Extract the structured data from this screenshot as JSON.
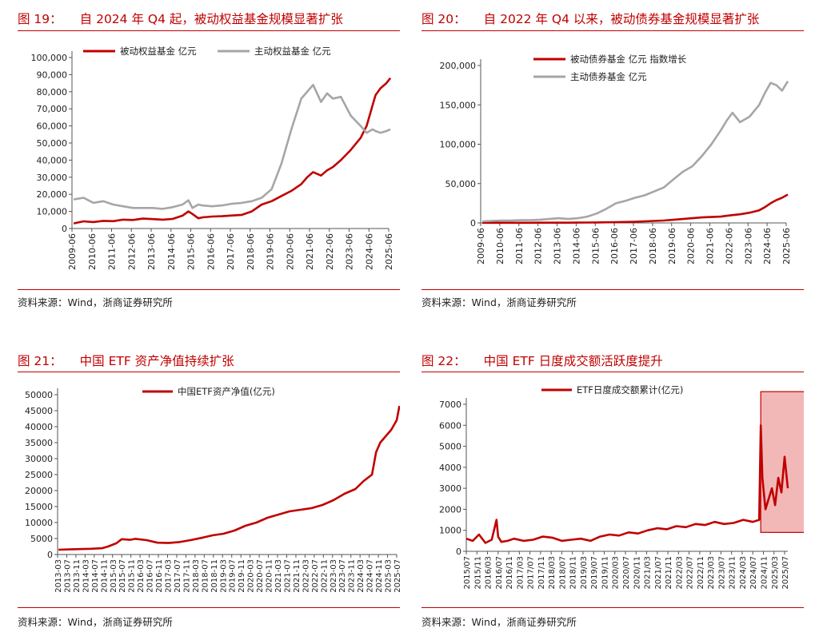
{
  "colors": {
    "red": "#c00000",
    "gray": "#a6a6a6",
    "highlight_fill": "#f2b8b8"
  },
  "panels": [
    {
      "title_num": "图 19：",
      "title": "自 2024 年 Q4 起，被动权益基金规模显著扩张",
      "source": "资料来源：Wind，浙商证券研究所"
    },
    {
      "title_num": "图 20：",
      "title": "自 2022 年 Q4 以来，被动债券基金规模显著扩张",
      "source": "资料来源：Wind，浙商证券研究所"
    },
    {
      "title_num": "图 21：",
      "title": "中国 ETF 资产净值持续扩张",
      "source": "资料来源：Wind，浙商证券研究所"
    },
    {
      "title_num": "图 22：",
      "title": "中国 ETF 日度成交额活跃度提升",
      "source": "资料来源：Wind，浙商证券研究所"
    }
  ],
  "chart_data": [
    {
      "type": "line",
      "ylim": [
        0,
        100000
      ],
      "yticks": [
        "0",
        "10,000",
        "20,000",
        "30,000",
        "40,000",
        "50,000",
        "60,000",
        "70,000",
        "80,000",
        "90,000",
        "100,000"
      ],
      "xticks": [
        "2009-06",
        "2010-06",
        "2011-06",
        "2012-06",
        "2013-06",
        "2014-06",
        "2015-06",
        "2016-06",
        "2017-06",
        "2018-06",
        "2019-06",
        "2020-06",
        "2021-06",
        "2022-06",
        "2023-06",
        "2024-06",
        "2025-06"
      ],
      "x": [
        2009.5,
        2010.0,
        2010.5,
        2011.0,
        2011.5,
        2012.0,
        2012.5,
        2013.0,
        2013.5,
        2014.0,
        2014.5,
        2015.0,
        2015.3,
        2015.5,
        2015.8,
        2016.0,
        2016.5,
        2017.0,
        2017.5,
        2018.0,
        2018.5,
        2019.0,
        2019.5,
        2020.0,
        2020.5,
        2021.0,
        2021.3,
        2021.6,
        2022.0,
        2022.3,
        2022.6,
        2023.0,
        2023.5,
        2024.0,
        2024.3,
        2024.6,
        2024.75,
        2025.0,
        2025.3,
        2025.5
      ],
      "legend_position": "top",
      "series": [
        {
          "name": "被动权益基金 亿元",
          "color": "#c00000",
          "values": [
            3000,
            4200,
            3800,
            4500,
            4300,
            5200,
            5000,
            5800,
            5500,
            5200,
            5600,
            7500,
            10000,
            8500,
            6000,
            6500,
            7000,
            7200,
            7600,
            8000,
            10000,
            14000,
            16000,
            19000,
            22000,
            26000,
            30000,
            33000,
            31000,
            34000,
            36000,
            40000,
            46000,
            53000,
            60000,
            72000,
            78000,
            82000,
            85000,
            88000
          ]
        },
        {
          "name": "主动权益基金 亿元",
          "color": "#a6a6a6",
          "values": [
            17000,
            18000,
            15000,
            16000,
            14000,
            13000,
            12000,
            12000,
            12000,
            11500,
            12500,
            14000,
            16500,
            12000,
            14000,
            13500,
            13000,
            13500,
            14500,
            15000,
            16000,
            18000,
            23000,
            38000,
            58000,
            76000,
            80000,
            84000,
            74000,
            79000,
            76000,
            77000,
            66000,
            60000,
            56000,
            58000,
            57000,
            56000,
            57000,
            58000
          ]
        }
      ]
    },
    {
      "type": "line",
      "ylim": [
        0,
        200000
      ],
      "yticks": [
        "0",
        "50,000",
        "100,000",
        "150,000",
        "200,000"
      ],
      "xticks": [
        "2009-06",
        "2010-06",
        "2011-06",
        "2012-06",
        "2013-06",
        "2014-06",
        "2015-06",
        "2016-06",
        "2017-06",
        "2018-06",
        "2019-06",
        "2020-06",
        "2021-06",
        "2022-06",
        "2023-06",
        "2024-06",
        "2025-06"
      ],
      "x": [
        2009.5,
        2010.0,
        2010.5,
        2011.0,
        2011.5,
        2012.0,
        2012.5,
        2013.0,
        2013.5,
        2014.0,
        2014.5,
        2015.0,
        2015.5,
        2016.0,
        2016.5,
        2017.0,
        2017.5,
        2018.0,
        2018.5,
        2019.0,
        2019.5,
        2020.0,
        2020.5,
        2021.0,
        2021.5,
        2022.0,
        2022.3,
        2022.6,
        2023.0,
        2023.5,
        2024.0,
        2024.3,
        2024.6,
        2024.9,
        2025.2,
        2025.5
      ],
      "legend_position": "top",
      "series": [
        {
          "name": "被动债券基金 亿元 指数增长",
          "color": "#c00000",
          "values": [
            200,
            200,
            200,
            200,
            250,
            250,
            300,
            300,
            300,
            300,
            400,
            500,
            600,
            800,
            1000,
            1200,
            1500,
            2000,
            2500,
            3000,
            4000,
            5000,
            6000,
            7000,
            7500,
            8000,
            9000,
            10000,
            11000,
            13000,
            16000,
            20000,
            25000,
            29000,
            32000,
            36000
          ]
        },
        {
          "name": "主动债券基金 亿元",
          "color": "#a6a6a6",
          "values": [
            2000,
            2500,
            3000,
            3000,
            3500,
            3500,
            4000,
            5000,
            6000,
            5000,
            6000,
            8000,
            12000,
            18000,
            25000,
            28000,
            32000,
            35000,
            40000,
            45000,
            55000,
            65000,
            72000,
            85000,
            100000,
            118000,
            130000,
            140000,
            128000,
            135000,
            150000,
            165000,
            178000,
            175000,
            168000,
            180000
          ]
        }
      ]
    },
    {
      "type": "line",
      "ylim": [
        0,
        50000
      ],
      "yticks": [
        "0",
        "5000",
        "10000",
        "15000",
        "20000",
        "25000",
        "30000",
        "35000",
        "40000",
        "45000",
        "50000"
      ],
      "xticks": [
        "2013-03",
        "2013-07",
        "2013-11",
        "2014-03",
        "2014-07",
        "2014-11",
        "2015-03",
        "2015-07",
        "2015-11",
        "2016-03",
        "2016-07",
        "2016-11",
        "2017-03",
        "2017-07",
        "2017-11",
        "2018-03",
        "2018-07",
        "2018-11",
        "2019-03",
        "2019-07",
        "2019-11",
        "2020-03",
        "2020-07",
        "2020-11",
        "2021-03",
        "2021-07",
        "2021-11",
        "2022-03",
        "2022-07",
        "2022-11",
        "2023-03",
        "2023-07",
        "2023-11",
        "2024-03",
        "2024-07",
        "2024-11",
        "2025-03",
        "2025-07"
      ],
      "x": [
        2013.2,
        2013.6,
        2014.0,
        2014.4,
        2014.8,
        2015.0,
        2015.3,
        2015.5,
        2015.8,
        2016.0,
        2016.4,
        2016.8,
        2017.2,
        2017.6,
        2018.0,
        2018.4,
        2018.8,
        2019.2,
        2019.6,
        2020.0,
        2020.4,
        2020.8,
        2021.2,
        2021.6,
        2022.0,
        2022.4,
        2022.8,
        2023.2,
        2023.6,
        2024.0,
        2024.3,
        2024.6,
        2024.75,
        2024.9,
        2025.1,
        2025.3,
        2025.5,
        2025.6
      ],
      "legend_position": "top",
      "series": [
        {
          "name": "中国ETF资产净值(亿元)",
          "color": "#c00000",
          "values": [
            1500,
            1600,
            1700,
            1800,
            2000,
            2500,
            3500,
            4800,
            4600,
            4900,
            4500,
            3700,
            3600,
            3900,
            4500,
            5200,
            6000,
            6500,
            7500,
            9000,
            10000,
            11500,
            12500,
            13500,
            14000,
            14500,
            15500,
            17000,
            19000,
            20500,
            23000,
            25000,
            32000,
            35000,
            37000,
            39000,
            42000,
            46500
          ]
        }
      ]
    },
    {
      "type": "line",
      "ylim": [
        0,
        7000
      ],
      "yticks": [
        "0",
        "1000",
        "2000",
        "3000",
        "4000",
        "5000",
        "6000",
        "7000"
      ],
      "xticks": [
        "2015/07",
        "2015/11",
        "2016/03",
        "2016/07",
        "2016/11",
        "2017/03",
        "2017/07",
        "2017/11",
        "2018/03",
        "2018/07",
        "2018/11",
        "2019/03",
        "2019/07",
        "2019/11",
        "2020/03",
        "2020/07",
        "2020/11",
        "2021/03",
        "2021/07",
        "2021/11",
        "2022/03",
        "2022/07",
        "2022/11",
        "2023/03",
        "2023/07",
        "2023/11",
        "2024/03",
        "2024/07",
        "2024/11",
        "2025/03",
        "2025/07"
      ],
      "x": [
        2015.5,
        2015.7,
        2015.9,
        2016.1,
        2016.3,
        2016.45,
        2016.5,
        2016.6,
        2016.8,
        2017.0,
        2017.3,
        2017.6,
        2017.9,
        2018.2,
        2018.5,
        2018.8,
        2019.1,
        2019.4,
        2019.7,
        2020.0,
        2020.3,
        2020.6,
        2020.9,
        2021.2,
        2021.5,
        2021.8,
        2022.1,
        2022.4,
        2022.7,
        2023.0,
        2023.3,
        2023.6,
        2023.9,
        2024.2,
        2024.5,
        2024.7,
        2024.75,
        2024.8,
        2024.9,
        2025.0,
        2025.1,
        2025.2,
        2025.3,
        2025.4,
        2025.5,
        2025.6
      ],
      "legend_position": "top",
      "highlight_region_x": [
        2024.75,
        2025.75
      ],
      "series": [
        {
          "name": "ETF日度成交额累计(亿元)",
          "color": "#c00000",
          "values": [
            600,
            500,
            800,
            400,
            550,
            1500,
            700,
            450,
            500,
            600,
            500,
            550,
            700,
            650,
            500,
            550,
            600,
            500,
            700,
            800,
            750,
            900,
            850,
            1000,
            1100,
            1050,
            1200,
            1150,
            1300,
            1250,
            1400,
            1300,
            1350,
            1500,
            1400,
            1500,
            6000,
            3500,
            2000,
            2500,
            3000,
            2200,
            3500,
            2800,
            4500,
            3000
          ]
        }
      ]
    }
  ]
}
